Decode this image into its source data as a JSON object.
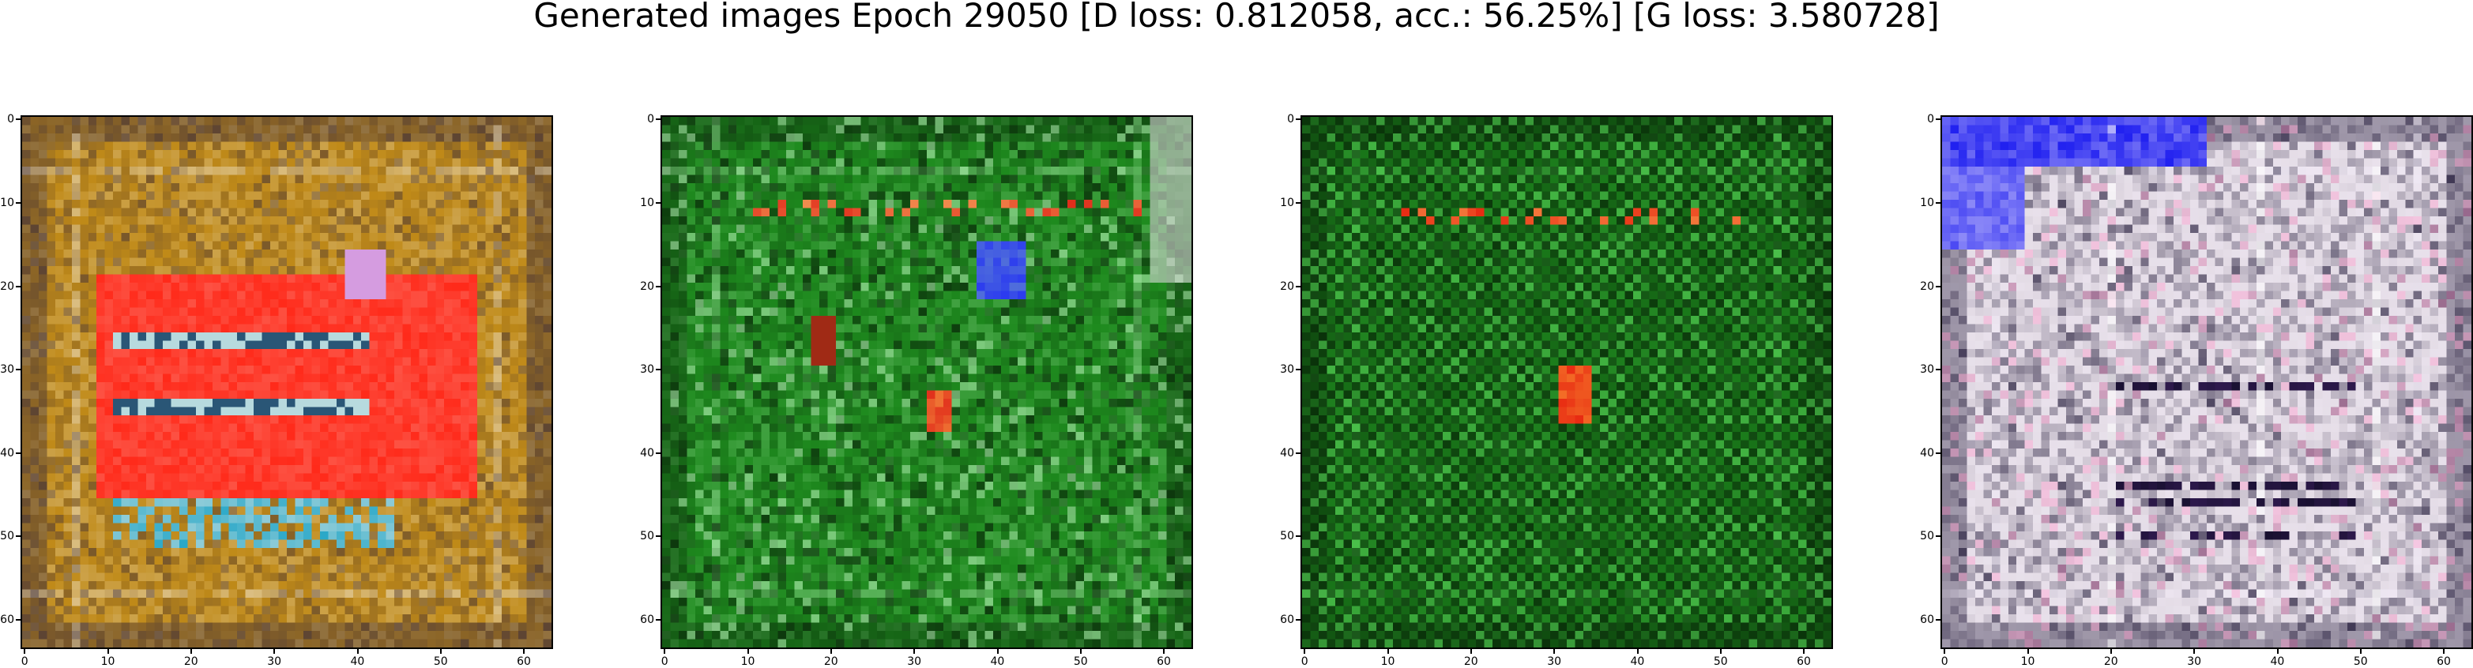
{
  "figure": {
    "title": "Generated images Epoch 29050 [D loss: 0.812058, acc.: 56.25%] [G loss: 3.580728]",
    "axis_ticks": [
      "0",
      "10",
      "20",
      "30",
      "40",
      "50",
      "60"
    ],
    "axis_tick_values": [
      0,
      10,
      20,
      30,
      40,
      50,
      60
    ],
    "axis_extent": [
      -0.5,
      63.5
    ],
    "panels": [
      {
        "name": "generated-image-1",
        "base_color": "#c08a18",
        "accent_color": "#ff2a1a",
        "secondary_color": "#2aa8c8",
        "dark_color": "#2a2040",
        "light_color": "#f4f0e8"
      },
      {
        "name": "generated-image-2",
        "base_color": "#1e8a1e",
        "accent_color": "#e02a1a",
        "secondary_color": "#2a3af0",
        "dark_color": "#0a2a0a",
        "light_color": "#a8e8a8"
      },
      {
        "name": "generated-image-3",
        "base_color": "#1a7a1a",
        "accent_color": "#e82a12",
        "secondary_color": "#0a3a0a",
        "dark_color": "#062006",
        "light_color": "#5ad65a"
      },
      {
        "name": "generated-image-4",
        "base_color": "#e4dce6",
        "accent_color": "#2020f0",
        "secondary_color": "#ffffff",
        "dark_color": "#181030",
        "light_color": "#f8f2ff"
      }
    ]
  }
}
